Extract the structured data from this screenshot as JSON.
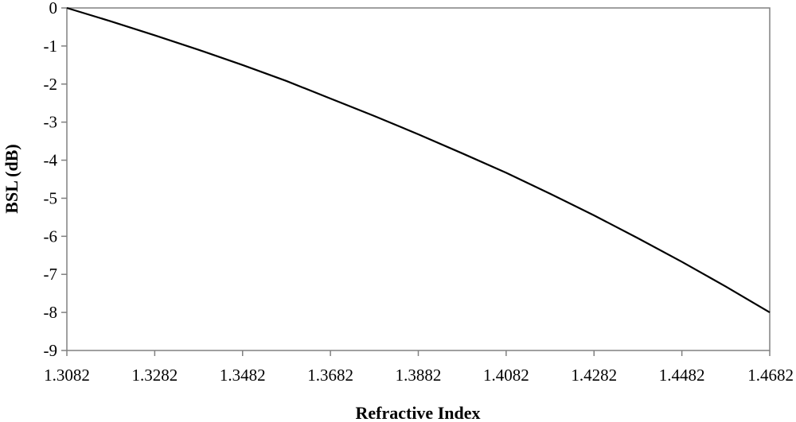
{
  "chart_data": {
    "type": "line",
    "title": "",
    "xlabel": "Refractive Index",
    "ylabel": "BSL (dB)",
    "xlim": [
      1.3082,
      1.4682
    ],
    "ylim": [
      -9,
      0
    ],
    "x_ticks": [
      "1.3082",
      "1.3282",
      "1.3482",
      "1.3682",
      "1.3882",
      "1.4082",
      "1.4282",
      "1.4482",
      "1.4682"
    ],
    "y_ticks": [
      "0",
      "-1",
      "-2",
      "-3",
      "-4",
      "-5",
      "-6",
      "-7",
      "-8",
      "-9"
    ],
    "grid": false,
    "legend": "none",
    "colors": {
      "line": "#000000",
      "frame": "#808080",
      "background": "#ffffff"
    },
    "series": [
      {
        "x": [
          1.3082,
          1.3182,
          1.3282,
          1.3382,
          1.3482,
          1.3582,
          1.3682,
          1.3782,
          1.3882,
          1.3982,
          1.4082,
          1.4182,
          1.4282,
          1.4382,
          1.4482,
          1.4582,
          1.4682
        ],
        "values": [
          0,
          -0.35,
          -0.72,
          -1.1,
          -1.5,
          -1.92,
          -2.38,
          -2.84,
          -3.32,
          -3.82,
          -4.33,
          -4.88,
          -5.45,
          -6.05,
          -6.67,
          -7.32,
          -8.0
        ]
      }
    ]
  }
}
